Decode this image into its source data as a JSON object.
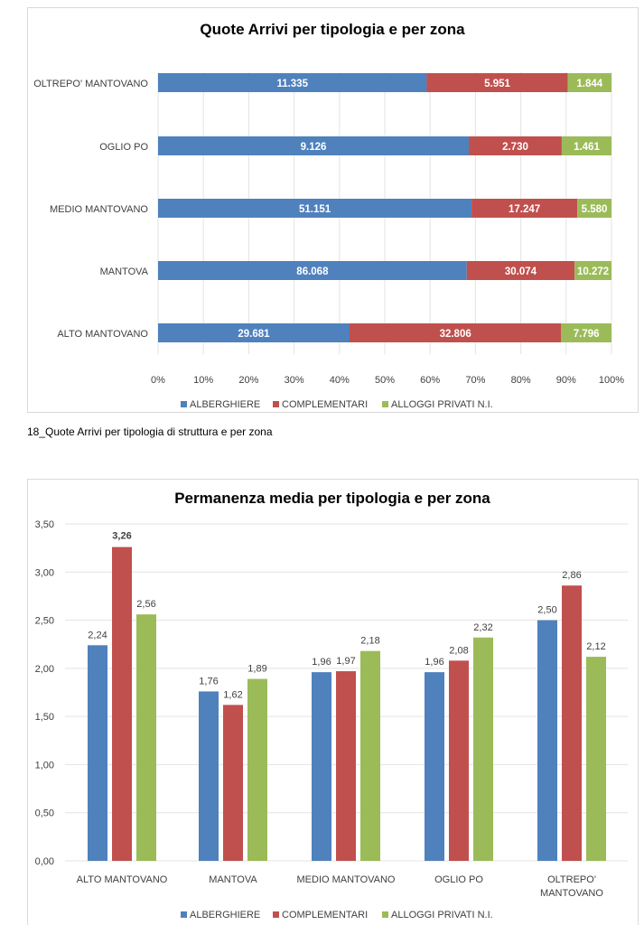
{
  "caption": "18_Quote Arrivi per tipologia di struttura e per zona",
  "colors": {
    "alberghiere": "#4f81bd",
    "complementari": "#c0504d",
    "alloggi": "#9bbb59"
  },
  "chart_data": [
    {
      "type": "bar",
      "orientation": "horizontal",
      "stacked": "percent",
      "title": "Quote Arrivi per tipologia e per zona",
      "categories": [
        "OLTREPO' MANTOVANO",
        "OGLIO PO",
        "MEDIO MANTOVANO",
        "MANTOVA",
        "ALTO MANTOVANO"
      ],
      "series": [
        {
          "name": "ALBERGHIERE",
          "values": [
            11335,
            9126,
            51151,
            86068,
            29681
          ],
          "labels": [
            "11.335",
            "9.126",
            "51.151",
            "86.068",
            "29.681"
          ]
        },
        {
          "name": "COMPLEMENTARI",
          "values": [
            5951,
            2730,
            17247,
            30074,
            32806
          ],
          "labels": [
            "5.951",
            "2.730",
            "17.247",
            "30.074",
            "32.806"
          ]
        },
        {
          "name": "ALLOGGI PRIVATI N.I.",
          "values": [
            1844,
            1461,
            5580,
            10272,
            7796
          ],
          "labels": [
            "1.844",
            "1.461",
            "5.580",
            "10.272",
            "7.796"
          ]
        }
      ],
      "xticks": [
        "0%",
        "10%",
        "20%",
        "30%",
        "40%",
        "50%",
        "60%",
        "70%",
        "80%",
        "90%",
        "100%"
      ],
      "xlim": [
        0,
        100
      ],
      "grid": true,
      "legend": "bottom"
    },
    {
      "type": "bar",
      "orientation": "vertical",
      "title": "Permanenza media per tipologia e per zona",
      "categories": [
        "ALTO MANTOVANO",
        "MANTOVA",
        "MEDIO MANTOVANO",
        "OGLIO PO",
        "OLTREPO' MANTOVANO"
      ],
      "series": [
        {
          "name": "ALBERGHIERE",
          "values": [
            2.24,
            1.76,
            1.96,
            1.96,
            2.5
          ],
          "labels": [
            "2,24",
            "1,76",
            "1,96",
            "1,96",
            "2,50"
          ]
        },
        {
          "name": "COMPLEMENTARI",
          "values": [
            3.26,
            1.62,
            1.97,
            2.08,
            2.86
          ],
          "labels": [
            "3,26",
            "1,62",
            "1,97",
            "2,08",
            "2,86"
          ]
        },
        {
          "name": "ALLOGGI PRIVATI N.I.",
          "values": [
            2.56,
            1.89,
            2.18,
            2.32,
            2.12
          ],
          "labels": [
            "2,56",
            "1,89",
            "2,18",
            "2,32",
            "2,12"
          ]
        }
      ],
      "yticks": [
        "0,00",
        "0,50",
        "1,00",
        "1,50",
        "2,00",
        "2,50",
        "3,00",
        "3,50"
      ],
      "ylim": [
        0,
        3.5
      ],
      "grid": true,
      "legend": "bottom"
    }
  ]
}
